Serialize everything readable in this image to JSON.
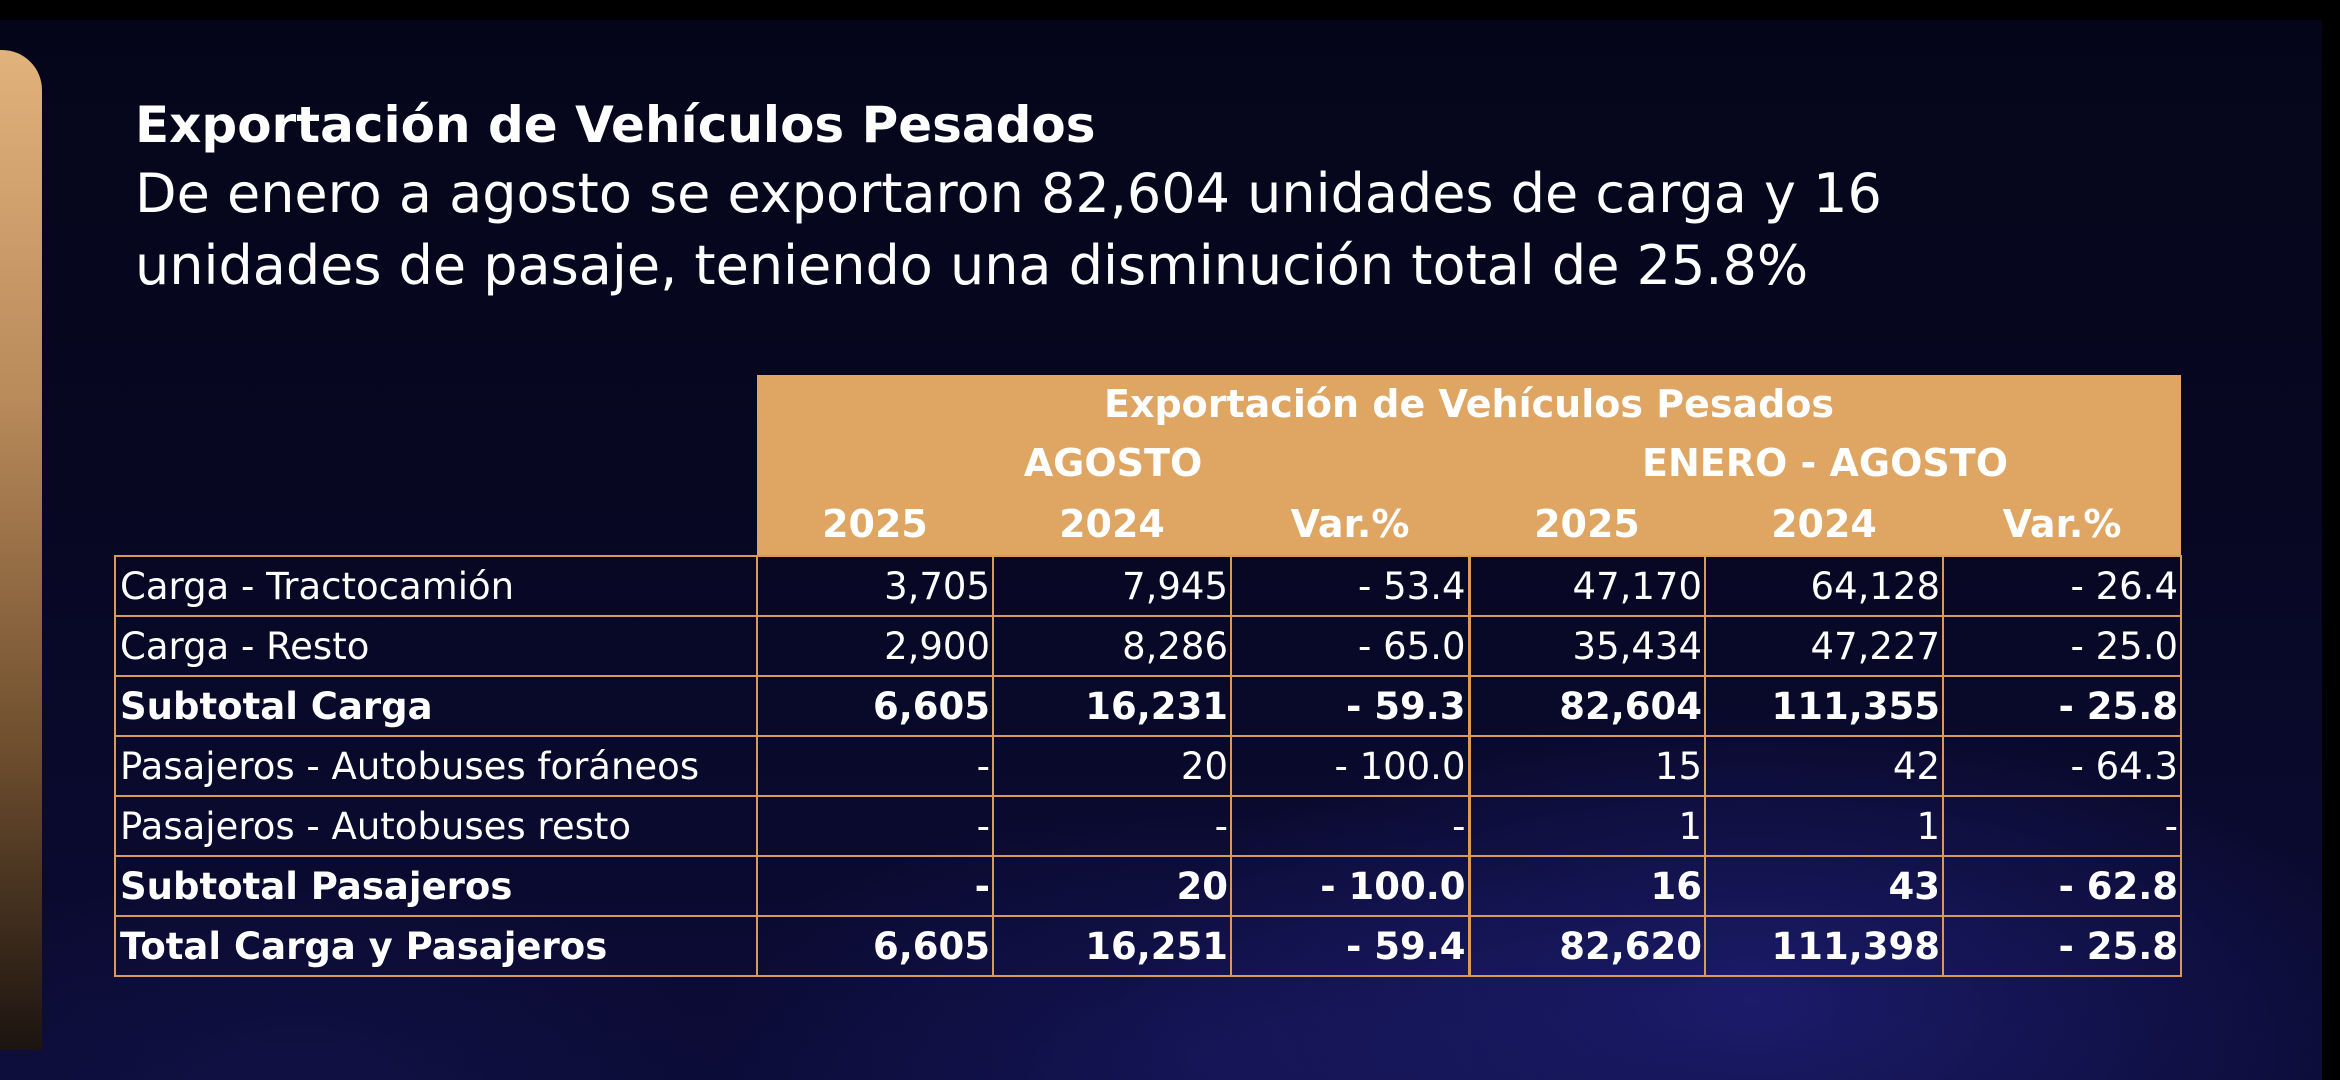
{
  "headline": {
    "title": "Exportación de Vehículos Pesados",
    "subtitle": "De enero a agosto se exportaron 82,604 unidades de carga y 16 unidades de pasaje, teniendo una disminución total de 25.8%"
  },
  "colors": {
    "accent": "#dfa563",
    "grid_border": "#d99a56",
    "background": "#05051a",
    "text": "#ffffff"
  },
  "table": {
    "title": "Exportación de Vehículos Pesados",
    "period_agosto": "AGOSTO",
    "period_enero_agosto": "ENERO - AGOSTO",
    "columns": [
      "2025",
      "2024",
      "Var.%",
      "2025",
      "2024",
      "Var.%"
    ],
    "rows": [
      {
        "label": "Carga - Tractocamión",
        "bold": false,
        "values": [
          "3,705",
          "7,945",
          "- 53.4",
          "47,170",
          "64,128",
          "- 26.4"
        ]
      },
      {
        "label": "Carga - Resto",
        "bold": false,
        "values": [
          "2,900",
          "8,286",
          "- 65.0",
          "35,434",
          "47,227",
          "- 25.0"
        ]
      },
      {
        "label": "Subtotal Carga",
        "bold": true,
        "values": [
          "6,605",
          "16,231",
          "- 59.3",
          "82,604",
          "111,355",
          "- 25.8"
        ]
      },
      {
        "label": "Pasajeros - Autobuses foráneos",
        "bold": false,
        "values": [
          "-",
          "20",
          "- 100.0",
          "15",
          "42",
          "- 64.3"
        ]
      },
      {
        "label": "Pasajeros - Autobuses resto",
        "bold": false,
        "values": [
          "-",
          "-",
          "-",
          "1",
          "1",
          "-"
        ]
      },
      {
        "label": "Subtotal Pasajeros",
        "bold": true,
        "values": [
          "-",
          "20",
          "- 100.0",
          "16",
          "43",
          "- 62.8"
        ]
      },
      {
        "label": "Total Carga y Pasajeros",
        "bold": true,
        "values": [
          "6,605",
          "16,251",
          "- 59.4",
          "82,620",
          "111,398",
          "- 25.8"
        ]
      }
    ]
  }
}
